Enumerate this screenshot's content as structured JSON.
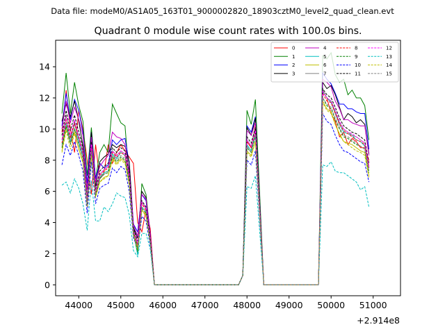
{
  "chart_data": {
    "type": "line",
    "suptitle": "Data file: modeM0/AS1A05_163T01_9000002820_18903cztM0_level2_quad_clean.evt",
    "title": "Quadrant 0 module wise count rates with 100.0s bins.",
    "xlabel": "",
    "ylabel": "",
    "offset_text": "+2.914e8",
    "xlim": [
      43450,
      51650
    ],
    "ylim": [
      -0.7,
      15.7
    ],
    "xticks": [
      44000,
      45000,
      46000,
      47000,
      48000,
      49000,
      50000,
      51000
    ],
    "yticks": [
      0,
      2,
      4,
      6,
      8,
      10,
      12,
      14
    ],
    "legend_position": "upper right",
    "legend_columns": 4,
    "series": [
      {
        "name": "0",
        "color": "#ff0000",
        "style": "solid",
        "values": [
          9.8,
          12.5,
          10.0,
          8.5,
          11.2,
          10.0,
          8.0,
          5.8,
          9.0,
          6.8,
          7.2,
          9.0,
          7.8,
          8.5,
          9.0,
          8.6,
          8.2,
          7.8,
          4.0,
          3.4,
          4.8,
          3.6,
          0,
          9.2,
          8.8,
          10.2,
          0,
          0,
          12.5,
          12.0,
          11.0,
          10.5,
          9.5,
          9.8,
          9.0,
          9.4,
          9.2,
          8.8,
          8.8,
          8.0
        ]
      },
      {
        "name": "1",
        "color": "#008000",
        "style": "solid",
        "values": [
          11.0,
          13.6,
          11.0,
          13.0,
          11.5,
          10.5,
          7.0,
          10.1,
          6.8,
          8.5,
          9.0,
          8.5,
          11.6,
          11.0,
          10.4,
          10.2,
          6.8,
          3.8,
          2.2,
          6.5,
          5.8,
          3.2,
          0,
          11.2,
          10.3,
          11.9,
          0,
          0,
          14.7,
          14.5,
          14.9,
          13.5,
          13.0,
          13.2,
          12.2,
          12.5,
          12.0,
          12.0,
          11.5,
          9.3
        ]
      },
      {
        "name": "2",
        "color": "#0000ff",
        "style": "solid",
        "values": [
          10.2,
          12.3,
          10.6,
          11.9,
          11.2,
          9.8,
          6.5,
          9.8,
          6.8,
          7.8,
          7.5,
          7.7,
          9.3,
          9.0,
          9.3,
          9.4,
          7.8,
          3.9,
          3.4,
          5.8,
          5.4,
          3.0,
          0,
          10.2,
          9.8,
          10.8,
          0,
          0,
          13.6,
          13.2,
          12.9,
          12.3,
          11.6,
          11.6,
          11.3,
          11.3,
          11.1,
          11.0,
          11.0,
          8.7
        ]
      },
      {
        "name": "3",
        "color": "#000000",
        "style": "solid",
        "values": [
          10.5,
          11.6,
          10.8,
          11.8,
          10.5,
          8.9,
          5.5,
          9.8,
          6.3,
          7.9,
          8.2,
          8.4,
          9.0,
          8.8,
          9.0,
          8.9,
          7.9,
          3.7,
          3.0,
          6.0,
          5.6,
          3.3,
          0,
          10.1,
          9.6,
          10.7,
          0,
          0,
          13.0,
          12.6,
          12.8,
          12.2,
          11.4,
          10.6,
          11.0,
          10.8,
          10.4,
          10.6,
          10.3,
          8.4
        ]
      },
      {
        "name": "4",
        "color": "#bf00bf",
        "style": "solid",
        "values": [
          10.0,
          11.8,
          10.4,
          11.4,
          10.6,
          9.6,
          6.1,
          9.5,
          6.6,
          7.6,
          8.0,
          8.3,
          9.8,
          9.5,
          9.4,
          9.0,
          7.3,
          3.9,
          3.1,
          5.8,
          5.5,
          3.3,
          0,
          9.9,
          9.6,
          10.4,
          0,
          0,
          13.2,
          13.0,
          12.7,
          11.8,
          11.3,
          10.6,
          10.6,
          10.4,
          10.3,
          10.2,
          10.2,
          8.3
        ]
      },
      {
        "name": "5",
        "color": "#00bfbf",
        "style": "solid",
        "values": [
          9.0,
          10.4,
          9.2,
          10.5,
          9.2,
          8.3,
          5.2,
          8.8,
          5.8,
          6.9,
          7.2,
          7.3,
          8.4,
          8.1,
          8.5,
          8.3,
          6.8,
          3.4,
          1.9,
          5.0,
          4.7,
          2.8,
          0,
          9.0,
          8.6,
          9.7,
          0,
          0,
          12.4,
          12.0,
          11.7,
          11.0,
          10.3,
          9.8,
          9.7,
          9.6,
          9.3,
          9.2,
          8.9,
          7.3
        ]
      },
      {
        "name": "6",
        "color": "#bfbf00",
        "style": "solid",
        "values": [
          8.6,
          10.1,
          9.1,
          9.8,
          8.7,
          7.9,
          5.1,
          8.4,
          5.7,
          6.6,
          6.9,
          7.0,
          8.1,
          7.8,
          8.1,
          7.9,
          6.5,
          3.2,
          2.2,
          4.8,
          4.5,
          2.7,
          0,
          8.6,
          8.3,
          9.2,
          0,
          0,
          11.8,
          11.3,
          11.1,
          10.3,
          9.7,
          9.2,
          9.1,
          9.0,
          8.8,
          8.6,
          8.5,
          7.0
        ]
      },
      {
        "name": "7",
        "color": "#808080",
        "style": "solid",
        "values": [
          9.3,
          10.9,
          9.5,
          10.3,
          9.5,
          8.6,
          5.4,
          9.0,
          6.0,
          7.1,
          7.4,
          7.6,
          8.6,
          8.3,
          8.6,
          8.4,
          7.0,
          3.5,
          2.6,
          5.3,
          4.9,
          2.9,
          0,
          9.3,
          8.9,
          10.0,
          0,
          0,
          12.5,
          12.0,
          11.8,
          11.1,
          10.4,
          10.0,
          9.8,
          9.6,
          9.5,
          9.3,
          9.1,
          7.6
        ]
      },
      {
        "name": "8",
        "color": "#ff0000",
        "style": "dashed",
        "values": [
          9.1,
          10.6,
          9.4,
          10.4,
          9.4,
          8.4,
          5.3,
          8.9,
          5.9,
          7.0,
          7.3,
          7.5,
          8.5,
          8.2,
          8.5,
          8.3,
          6.9,
          3.4,
          2.5,
          5.2,
          4.8,
          2.9,
          0,
          9.2,
          8.8,
          9.8,
          0,
          0,
          12.3,
          11.8,
          11.7,
          11.0,
          10.3,
          9.9,
          9.7,
          9.5,
          9.3,
          9.2,
          9.0,
          7.5
        ]
      },
      {
        "name": "9",
        "color": "#008000",
        "style": "dashed",
        "values": [
          8.8,
          10.2,
          9.0,
          10.0,
          9.0,
          8.1,
          5.1,
          8.6,
          5.7,
          6.8,
          7.1,
          7.2,
          8.2,
          7.9,
          8.2,
          8.0,
          6.6,
          3.3,
          2.1,
          4.9,
          4.6,
          2.8,
          0,
          8.8,
          8.5,
          9.5,
          0,
          0,
          12.0,
          11.5,
          11.3,
          10.6,
          10.0,
          9.5,
          9.4,
          9.2,
          9.0,
          8.9,
          8.7,
          7.2
        ]
      },
      {
        "name": "10",
        "color": "#0000ff",
        "style": "dashed",
        "values": [
          7.7,
          9.0,
          8.3,
          9.2,
          8.3,
          7.3,
          4.6,
          7.9,
          5.2,
          6.2,
          6.4,
          6.5,
          7.5,
          7.2,
          7.6,
          7.4,
          6.0,
          3.0,
          2.4,
          4.4,
          4.1,
          2.5,
          0,
          8.0,
          7.7,
          8.6,
          0,
          0,
          11.0,
          10.5,
          10.3,
          9.6,
          9.0,
          8.6,
          8.5,
          8.3,
          8.1,
          7.9,
          7.8,
          6.6
        ]
      },
      {
        "name": "11",
        "color": "#000000",
        "style": "dashed",
        "values": [
          9.6,
          11.2,
          9.9,
          10.9,
          9.8,
          8.8,
          5.5,
          9.2,
          6.1,
          7.3,
          7.6,
          7.8,
          8.8,
          8.5,
          8.8,
          8.6,
          7.2,
          3.6,
          2.8,
          5.4,
          5.0,
          3.0,
          0,
          9.5,
          9.1,
          10.1,
          0,
          0,
          12.6,
          12.2,
          12.0,
          11.4,
          10.7,
          10.2,
          10.0,
          9.8,
          9.7,
          9.5,
          9.3,
          7.8
        ]
      },
      {
        "name": "12",
        "color": "#ff00ff",
        "style": "dashed",
        "values": [
          9.3,
          10.8,
          9.6,
          10.6,
          9.5,
          8.5,
          5.4,
          9.0,
          6.0,
          7.1,
          7.4,
          7.6,
          8.6,
          8.3,
          8.6,
          8.4,
          7.0,
          3.5,
          2.7,
          5.3,
          4.9,
          2.9,
          0,
          9.3,
          8.9,
          9.9,
          0,
          0,
          12.4,
          12.0,
          11.8,
          11.2,
          10.5,
          10.0,
          9.8,
          9.7,
          9.5,
          9.3,
          9.1,
          7.6
        ]
      },
      {
        "name": "13",
        "color": "#00bfbf",
        "style": "dashed",
        "values": [
          6.4,
          6.6,
          5.9,
          6.8,
          6.2,
          5.2,
          3.5,
          6.7,
          4.1,
          4.1,
          5.0,
          4.7,
          5.2,
          5.9,
          5.7,
          5.6,
          4.5,
          2.2,
          1.8,
          3.3,
          3.3,
          2.3,
          0,
          6.3,
          6.2,
          7.0,
          0,
          0,
          7.7,
          7.6,
          7.9,
          7.3,
          7.2,
          7.2,
          7.0,
          6.8,
          6.6,
          6.1,
          6.3,
          5.0
        ]
      },
      {
        "name": "14",
        "color": "#bfbf00",
        "style": "dashed",
        "values": [
          8.5,
          9.9,
          8.7,
          9.7,
          8.7,
          7.8,
          5.0,
          8.3,
          5.6,
          6.6,
          6.8,
          7.0,
          8.0,
          7.7,
          8.0,
          7.8,
          6.4,
          3.2,
          2.3,
          4.8,
          4.4,
          2.7,
          0,
          8.5,
          8.2,
          9.2,
          0,
          0,
          11.7,
          11.2,
          11.0,
          10.3,
          9.6,
          9.2,
          9.0,
          8.8,
          8.6,
          8.5,
          8.3,
          6.9
        ]
      },
      {
        "name": "15",
        "color": "#808080",
        "style": "dashed",
        "values": [
          8.9,
          10.3,
          9.1,
          10.1,
          9.0,
          8.1,
          5.2,
          8.6,
          5.8,
          6.8,
          7.1,
          7.3,
          8.3,
          8.0,
          8.3,
          8.1,
          6.7,
          3.3,
          2.4,
          5.0,
          4.7,
          2.8,
          0,
          8.9,
          8.5,
          9.6,
          0,
          0,
          12.0,
          11.6,
          11.4,
          10.7,
          10.1,
          9.6,
          9.5,
          9.3,
          9.1,
          8.9,
          8.7,
          7.3
        ]
      }
    ]
  }
}
